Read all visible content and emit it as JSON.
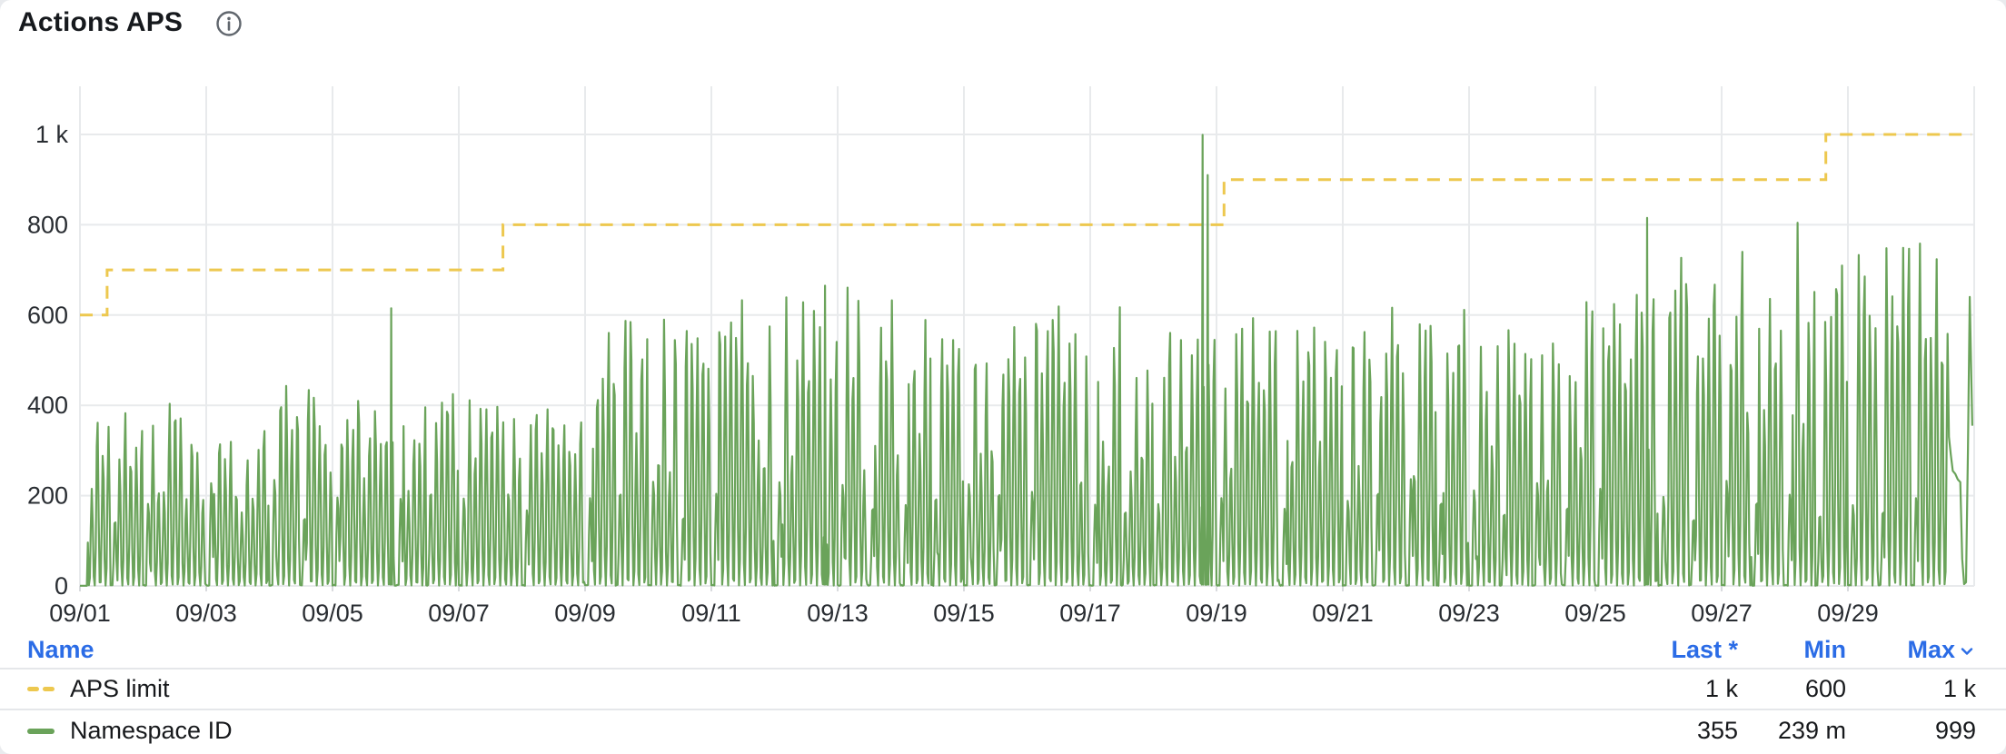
{
  "panel": {
    "title": "Actions APS",
    "info_icon": "info-circle"
  },
  "table": {
    "columns": [
      "Name",
      "Last *",
      "Min",
      "Max"
    ],
    "sorted_by": "Max",
    "sort_direction": "desc",
    "rows": [
      {
        "name": "APS limit",
        "last": "1 k",
        "min": "600",
        "max": "1 k"
      },
      {
        "name": "Namespace ID",
        "last": "355",
        "min": "239 m",
        "max": "999"
      }
    ]
  },
  "chart_data": {
    "type": "line",
    "title": "Actions APS",
    "grid": true,
    "legend_position": "bottom-table",
    "x_axis": {
      "month": "09",
      "start_day": 1,
      "end_day": 31,
      "tick_days": [
        1,
        3,
        5,
        7,
        9,
        11,
        13,
        15,
        17,
        19,
        21,
        23,
        25,
        27,
        29
      ],
      "tick_labels": [
        "09/01",
        "09/03",
        "09/05",
        "09/07",
        "09/09",
        "09/11",
        "09/13",
        "09/15",
        "09/17",
        "09/19",
        "09/21",
        "09/23",
        "09/25",
        "09/27",
        "09/29"
      ]
    },
    "y_axis": {
      "min": 0,
      "max": 1000,
      "ticks": [
        0,
        200,
        400,
        600,
        800,
        1000
      ],
      "tick_labels": [
        "0",
        "200",
        "400",
        "600",
        "800",
        "1 k"
      ]
    },
    "series": [
      {
        "name": "APS limit",
        "type": "step-line",
        "style": "dashed",
        "color": "#edc84f",
        "points": [
          [
            1,
            600
          ],
          [
            1.43,
            700
          ],
          [
            7.7,
            800
          ],
          [
            19.12,
            900
          ],
          [
            28.65,
            1000
          ],
          [
            30.95,
            1000
          ]
        ],
        "last": "1 k",
        "min": "600",
        "max": "1 k"
      },
      {
        "name": "Namespace ID",
        "type": "line",
        "style": "solid",
        "color": "#6aa35a",
        "pattern": "bursts of narrow spikes each day oscillating between ~0 and the day's peak, with short quiet periods near 0 around day boundaries and ~200-value shoulder bumps",
        "daily_peaks": [
          405,
          415,
          400,
          465,
          450,
          455,
          415,
          410,
          620,
          615,
          635,
          640,
          660,
          630,
          640,
          650,
          650,
          655,
          620,
          640,
          630,
          630,
          630,
          640,
          700,
          750,
          765,
          810,
          790,
          775
        ],
        "events": [
          [
            5.93,
            615
          ],
          [
            12.8,
            665
          ],
          [
            18.78,
            999
          ],
          [
            18.86,
            910
          ],
          [
            25.82,
            815
          ]
        ],
        "tail": [
          [
            30.6,
            330
          ],
          [
            30.63,
            290
          ],
          [
            30.66,
            255
          ],
          [
            30.7,
            248
          ],
          [
            30.74,
            236
          ],
          [
            30.78,
            230
          ],
          [
            30.81,
            60
          ],
          [
            30.84,
            4
          ],
          [
            30.87,
            8
          ],
          [
            30.9,
            300
          ],
          [
            30.93,
            640
          ],
          [
            30.97,
            355
          ]
        ],
        "min_value": 0.239,
        "max_value": 999,
        "last_value": 355,
        "last": "355",
        "min": "239 m",
        "max": "999"
      }
    ]
  }
}
